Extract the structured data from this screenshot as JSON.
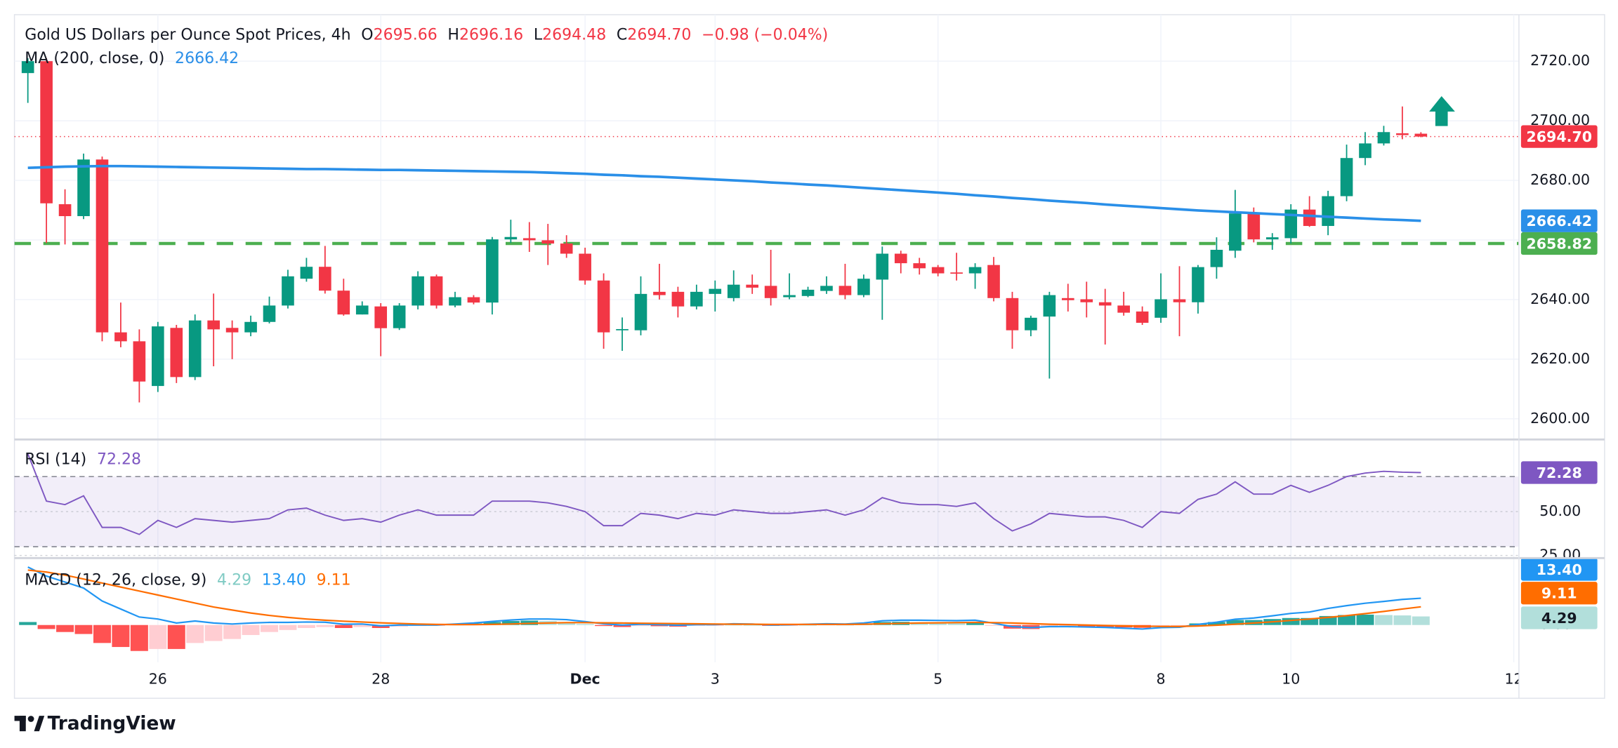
{
  "chart_data": {
    "type": "candlestick",
    "title": "Gold US Dollars per Ounce Spot Prices, 4h",
    "ohlc_prefixes": [
      "O",
      "H",
      "L",
      "C"
    ],
    "change_label": "−0.98 (−0.04%)",
    "categories": [
      null,
      null,
      null,
      null,
      null,
      null,
      null,
      "26",
      null,
      null,
      null,
      null,
      null,
      null,
      null,
      null,
      null,
      null,
      null,
      "28",
      null,
      null,
      null,
      null,
      null,
      null,
      null,
      null,
      null,
      null,
      "Dec",
      null,
      null,
      null,
      null,
      null,
      null,
      "3",
      null,
      null,
      null,
      null,
      null,
      null,
      null,
      null,
      null,
      null,
      null,
      "5",
      null,
      null,
      null,
      null,
      null,
      null,
      null,
      null,
      null,
      null,
      null,
      "8",
      null,
      null,
      null,
      null,
      null,
      null,
      "10",
      null,
      null,
      null,
      null,
      null,
      null,
      null,
      null,
      null,
      null,
      null,
      "12"
    ],
    "open": [
      2716,
      2720,
      2672,
      2668,
      2687,
      2629,
      2626,
      2611,
      2630.5,
      2614,
      2633,
      2630.5,
      2629,
      2632.5,
      2638,
      2647,
      2651,
      2643,
      2635,
      2637.7,
      2630.4,
      2638,
      2647.8,
      2638,
      2640.8,
      2639,
      2660.2,
      2660.6,
      2659.9,
      2658.8,
      2655.4,
      2646.4,
      2629.7,
      2629.7,
      2642.6,
      2642.6,
      2637.7,
      2641.9,
      2640.5,
      2645,
      2644.6,
      2640.8,
      2641.2,
      2642.9,
      2644.6,
      2641.5,
      2646.7,
      2655.4,
      2652.2,
      2650.9,
      2649.1,
      2648.8,
      2651.6,
      2640.5,
      2629.7,
      2634.3,
      2640.5,
      2640.1,
      2639.1,
      2638,
      2636,
      2633.9,
      2640.1,
      2639.1,
      2650.9,
      2656.4,
      2668.9,
      2660.2,
      2660.6,
      2670.2,
      2664.7,
      2674.7,
      2687.5,
      2692.4,
      2695.8,
      2695.66,
      null,
      null,
      null,
      null,
      null
    ],
    "high": [
      2721,
      2721,
      2677,
      2689,
      2688,
      2639,
      2630,
      2632.5,
      2631.5,
      2635,
      2642,
      2633,
      2634.6,
      2641,
      2650,
      2654,
      2658,
      2647,
      2639.4,
      2638.8,
      2638.8,
      2649.5,
      2648.4,
      2642.6,
      2641.5,
      2661,
      2666.8,
      2666,
      2665.4,
      2661.6,
      2657.4,
      2648.8,
      2634,
      2647.8,
      2652,
      2644.3,
      2645,
      2646.4,
      2649.8,
      2648.4,
      2656.7,
      2648.8,
      2644.3,
      2647.8,
      2652,
      2648.4,
      2657.8,
      2656.4,
      2654,
      2651.6,
      2655.7,
      2652.2,
      2654.3,
      2642.6,
      2634.6,
      2642.6,
      2645.3,
      2646,
      2643.6,
      2642.6,
      2637.7,
      2648.8,
      2651.2,
      2651.6,
      2660.9,
      2676.8,
      2670.9,
      2662.3,
      2672,
      2674.7,
      2676.5,
      2692,
      2696.2,
      2698.3,
      2704.8,
      2696.16,
      null,
      null,
      null,
      null,
      null
    ],
    "low": [
      2706,
      2659,
      2658.5,
      2667,
      2626,
      2624,
      2605.5,
      2609,
      2612,
      2613,
      2617.6,
      2620,
      2627.7,
      2632,
      2637,
      2646,
      2642,
      2634.6,
      2635,
      2621,
      2629.8,
      2636.7,
      2637,
      2637.4,
      2638.4,
      2635,
      2659,
      2656,
      2651.6,
      2654,
      2645,
      2623.5,
      2622.8,
      2628,
      2640,
      2634,
      2636.7,
      2636,
      2639.4,
      2641.9,
      2638,
      2640.1,
      2640.8,
      2641.9,
      2640.1,
      2640.8,
      2633.2,
      2648.8,
      2648.4,
      2647.8,
      2646.4,
      2643.6,
      2639.4,
      2623.5,
      2627.7,
      2613.5,
      2636,
      2634,
      2624.9,
      2634.6,
      2631.5,
      2632.2,
      2627.7,
      2635.3,
      2647,
      2654,
      2659.2,
      2656.7,
      2658.8,
      2664.4,
      2661.6,
      2673,
      2685.1,
      2691.7,
      2693.8,
      2694.48,
      null,
      null,
      null,
      null,
      null
    ],
    "close": [
      2720,
      2672.3,
      2668,
      2687,
      2629,
      2626,
      2612.5,
      2631,
      2614,
      2633,
      2630,
      2629,
      2632.5,
      2638,
      2647.8,
      2651,
      2643,
      2635,
      2638,
      2630.4,
      2638,
      2647.8,
      2638,
      2640.8,
      2639,
      2660.2,
      2661,
      2659.9,
      2658.8,
      2655.4,
      2646.4,
      2629,
      2630.1,
      2641.9,
      2641.5,
      2637.7,
      2642.6,
      2643.6,
      2645,
      2644,
      2640.5,
      2641.5,
      2643.3,
      2644.6,
      2641.5,
      2647,
      2655.4,
      2652.2,
      2650.5,
      2648.8,
      2648.8,
      2650.9,
      2640.5,
      2629.7,
      2633.9,
      2641.5,
      2639.8,
      2639.1,
      2638,
      2635.6,
      2632.2,
      2640.1,
      2639.1,
      2650.9,
      2656.7,
      2668.9,
      2660.2,
      2660.9,
      2670.2,
      2664.7,
      2674.7,
      2687.5,
      2692.4,
      2696.2,
      2695.2,
      2694.7,
      null,
      null,
      null,
      null,
      null
    ],
    "colors": {
      "up": "#089981",
      "down": "#f23645"
    },
    "ylim": [
      2593.4,
      2735.6
    ],
    "yticks": [
      {
        "value": 2600,
        "label": "2600.00"
      },
      {
        "value": 2620,
        "label": "2620.00"
      },
      {
        "value": 2640,
        "label": "2640.00"
      },
      {
        "value": 2660,
        "label": "2660.00"
      },
      {
        "value": 2680,
        "label": "2680.00"
      },
      {
        "value": 2700,
        "label": "2700.00"
      },
      {
        "value": 2720,
        "label": "2720.00"
      }
    ],
    "grid": true,
    "last_price": {
      "value": 2694.7,
      "label": "2694.70"
    },
    "support": {
      "value": 2658.82,
      "color": "#4caf50"
    },
    "ma": {
      "name": "MA (200, close, 0)",
      "color": "#2a8fe8",
      "values": [
        2684.2,
        2684.4,
        2684.6,
        2684.7,
        2684.8,
        2684.8,
        2684.7,
        2684.6,
        2684.5,
        2684.4,
        2684.3,
        2684.2,
        2684.1,
        2684.0,
        2683.9,
        2683.8,
        2683.8,
        2683.7,
        2683.6,
        2683.5,
        2683.5,
        2683.4,
        2683.3,
        2683.2,
        2683.1,
        2683.0,
        2682.9,
        2682.8,
        2682.6,
        2682.4,
        2682.2,
        2681.9,
        2681.7,
        2681.4,
        2681.2,
        2680.9,
        2680.6,
        2680.3,
        2680.0,
        2679.7,
        2679.3,
        2679.0,
        2678.6,
        2678.3,
        2677.9,
        2677.5,
        2677.1,
        2676.7,
        2676.3,
        2675.9,
        2675.5,
        2675.0,
        2674.6,
        2674.1,
        2673.7,
        2673.2,
        2672.8,
        2672.4,
        2671.9,
        2671.5,
        2671.1,
        2670.7,
        2670.3,
        2669.9,
        2669.6,
        2669.3,
        2669.0,
        2668.7,
        2668.4,
        2668.1,
        2667.8,
        2667.5,
        2667.2,
        2666.9,
        2666.7,
        2666.42,
        null,
        null,
        null,
        null,
        null
      ]
    },
    "rsi": {
      "name": "RSI (14)",
      "color": "#7e57c2",
      "ylim": [
        24.1,
        90
      ],
      "bands": [
        30,
        70
      ],
      "yticks": [
        {
          "value": 50,
          "label": "50.00"
        },
        {
          "value": 25,
          "label": "25.00"
        }
      ],
      "values": [
        83,
        56,
        54,
        59,
        41,
        41,
        37,
        45,
        41,
        46,
        45,
        44,
        45,
        46,
        51,
        52,
        48,
        45,
        46,
        44,
        48,
        51,
        48,
        48,
        48,
        56,
        56,
        56,
        55,
        53,
        50,
        42,
        42,
        49,
        48,
        46,
        49,
        48,
        51,
        50,
        49,
        49,
        50,
        51,
        48,
        51,
        58,
        55,
        54,
        54,
        53,
        55,
        46,
        39,
        43,
        49,
        48,
        47,
        47,
        45,
        41,
        50,
        49,
        57,
        60,
        67,
        60,
        60,
        65,
        61,
        65,
        70,
        72,
        73,
        72.5,
        72.28,
        null,
        null,
        null,
        null,
        null
      ]
    },
    "macd": {
      "name": "MACD (12, 26, close, 9)",
      "ylim": [
        -18.6,
        33
      ],
      "yticks": [
        {
          "value": 0,
          "label": "0.00"
        }
      ],
      "histogram": {
        "colors": {
          "up_strong": "#26a69a",
          "up_weak": "#b2dfdb",
          "down_strong": "#ff5252",
          "down_weak": "#ffcdd2"
        },
        "values": [
          1.5,
          -2,
          -3.5,
          -4.5,
          -9,
          -11,
          -13,
          -12,
          -12,
          -9,
          -8,
          -7,
          -5,
          -3.5,
          -2.5,
          -1.5,
          -1,
          -1.5,
          -1,
          -1.5,
          -0.8,
          -0.5,
          -0.3,
          0.3,
          0.8,
          1.5,
          2,
          2.2,
          2,
          1.5,
          0.5,
          -0.5,
          -1,
          -0.5,
          -0.6,
          -0.8,
          -0.4,
          -0.3,
          0.2,
          0.1,
          -0.3,
          -0.2,
          0.1,
          0.3,
          0.2,
          0.6,
          1.5,
          1.6,
          1.4,
          1.2,
          1,
          1.1,
          -0.3,
          -1.8,
          -2,
          -1.2,
          -1,
          -1,
          -1,
          -1.2,
          -1.4,
          -0.6,
          -0.4,
          0.8,
          1.5,
          2.5,
          2.5,
          3,
          3.5,
          3.5,
          4.5,
          5,
          5.2,
          5,
          4.8,
          4.29,
          null,
          null,
          null,
          null,
          null
        ]
      },
      "macd_line": {
        "color": "#2196f3",
        "last_label": "13.40",
        "values": [
          29,
          24.5,
          21.5,
          18.5,
          12,
          8,
          4,
          3,
          1,
          2,
          1,
          0.5,
          1,
          1.3,
          1.3,
          1.5,
          1.4,
          0.4,
          0.5,
          -0.4,
          0,
          0,
          0,
          0.5,
          1,
          1.8,
          2.5,
          3,
          3,
          2.7,
          1.7,
          0.6,
          0,
          0.4,
          0.2,
          -0.1,
          0.2,
          0.2,
          0.6,
          0.5,
          0,
          0.1,
          0.4,
          0.6,
          0.5,
          1,
          2.1,
          2.4,
          2.4,
          2.3,
          2.2,
          2.4,
          0.9,
          -0.8,
          -1.3,
          -0.8,
          -0.8,
          -1,
          -1.2,
          -1.6,
          -2,
          -1.3,
          -1.1,
          0.3,
          1.4,
          2.9,
          3.5,
          4.6,
          5.8,
          6.5,
          8.3,
          9.7,
          10.9,
          11.8,
          12.8,
          13.4,
          null,
          null,
          null,
          null,
          null
        ]
      },
      "signal_line": {
        "color": "#ff6d00",
        "last_label": "9.11",
        "values": [
          27.5,
          26.5,
          25,
          23,
          21,
          19,
          17,
          15,
          13,
          11,
          9,
          7.5,
          6,
          4.8,
          3.8,
          3,
          2.4,
          1.9,
          1.5,
          1.1,
          0.8,
          0.5,
          0.3,
          0.2,
          0.2,
          0.3,
          0.5,
          0.8,
          1,
          1.2,
          1.2,
          1.1,
          1,
          0.9,
          0.8,
          0.7,
          0.6,
          0.5,
          0.4,
          0.4,
          0.3,
          0.3,
          0.3,
          0.3,
          0.3,
          0.4,
          0.6,
          0.8,
          1,
          1.1,
          1.2,
          1.3,
          1.2,
          1,
          0.7,
          0.4,
          0.2,
          0,
          -0.2,
          -0.4,
          -0.6,
          -0.7,
          -0.7,
          -0.5,
          -0.1,
          0.4,
          1,
          1.6,
          2.3,
          3,
          3.8,
          4.7,
          5.7,
          6.8,
          8,
          9.11,
          null,
          null,
          null,
          null,
          null
        ]
      }
    },
    "brand": "TradingView"
  }
}
